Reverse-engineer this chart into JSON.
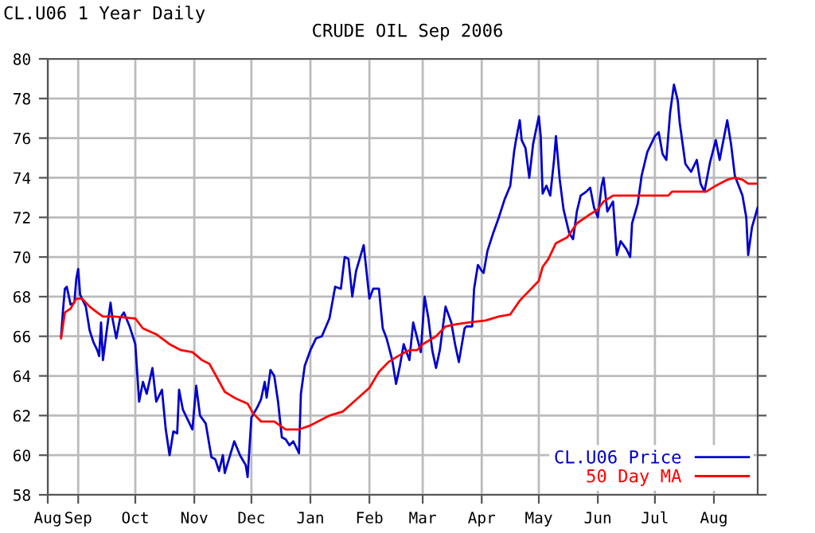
{
  "chart_data": {
    "type": "line",
    "title": "CRUDE OIL Sep 2006",
    "subtitle": "CL.U06 1 Year Daily",
    "xlim": [
      "2005-08-16",
      "2006-08-24"
    ],
    "xticks": [
      {
        "value": "2005-08-16",
        "label": "Aug"
      },
      {
        "value": "2005-09-01",
        "label": "Sep"
      },
      {
        "value": "2005-10-01",
        "label": "Oct"
      },
      {
        "value": "2005-11-01",
        "label": "Nov"
      },
      {
        "value": "2005-12-01",
        "label": "Dec"
      },
      {
        "value": "2006-01-01",
        "label": "Jan"
      },
      {
        "value": "2006-02-01",
        "label": "Feb"
      },
      {
        "value": "2006-03-01",
        "label": "Mar"
      },
      {
        "value": "2006-04-01",
        "label": "Apr"
      },
      {
        "value": "2006-05-01",
        "label": "May"
      },
      {
        "value": "2006-06-01",
        "label": "Jun"
      },
      {
        "value": "2006-07-01",
        "label": "Jul"
      },
      {
        "value": "2006-08-01",
        "label": "Aug"
      }
    ],
    "ylim": [
      58,
      80
    ],
    "yticks": [
      58,
      60,
      62,
      64,
      66,
      68,
      70,
      72,
      74,
      76,
      78,
      80
    ],
    "grid": true,
    "legend": "bottom right",
    "marker": "none",
    "line_style": "solid",
    "series": [
      {
        "name": "CL.U06 Price",
        "color": "#0000cc",
        "x": [
          "2005-08-23",
          "2005-08-24",
          "2005-08-25",
          "2005-08-26",
          "2005-08-28",
          "2005-08-30",
          "2005-08-31",
          "2005-09-01",
          "2005-09-02",
          "2005-09-05",
          "2005-09-07",
          "2005-09-09",
          "2005-09-11",
          "2005-09-12",
          "2005-09-13",
          "2005-09-14",
          "2005-09-16",
          "2005-09-18",
          "2005-09-19",
          "2005-09-21",
          "2005-09-23",
          "2005-09-25",
          "2005-09-28",
          "2005-10-01",
          "2005-10-03",
          "2005-10-05",
          "2005-10-07",
          "2005-10-10",
          "2005-10-12",
          "2005-10-15",
          "2005-10-17",
          "2005-10-19",
          "2005-10-21",
          "2005-10-23",
          "2005-10-24",
          "2005-10-26",
          "2005-10-28",
          "2005-10-31",
          "2005-11-02",
          "2005-11-04",
          "2005-11-07",
          "2005-11-10",
          "2005-11-12",
          "2005-11-14",
          "2005-11-16",
          "2005-11-17",
          "2005-11-22",
          "2005-11-25",
          "2005-11-28",
          "2005-11-29",
          "2005-12-01",
          "2005-12-04",
          "2005-12-06",
          "2005-12-08",
          "2005-12-09",
          "2005-12-11",
          "2005-12-13",
          "2005-12-15",
          "2005-12-17",
          "2005-12-19",
          "2005-12-21",
          "2005-12-23",
          "2005-12-26",
          "2005-12-27",
          "2005-12-29",
          "2006-01-01",
          "2006-01-04",
          "2006-01-07",
          "2006-01-11",
          "2006-01-14",
          "2006-01-17",
          "2006-01-19",
          "2006-01-21",
          "2006-01-23",
          "2006-01-25",
          "2006-01-29",
          "2006-02-01",
          "2006-02-03",
          "2006-02-06",
          "2006-02-08",
          "2006-02-10",
          "2006-02-13",
          "2006-02-15",
          "2006-02-17",
          "2006-02-19",
          "2006-02-22",
          "2006-02-24",
          "2006-02-28",
          "2006-03-02",
          "2006-03-04",
          "2006-03-06",
          "2006-03-08",
          "2006-03-10",
          "2006-03-13",
          "2006-03-16",
          "2006-03-18",
          "2006-03-20",
          "2006-03-23",
          "2006-03-24",
          "2006-03-27",
          "2006-03-28",
          "2006-03-30",
          "2006-04-01",
          "2006-04-02",
          "2006-04-04",
          "2006-04-07",
          "2006-04-10",
          "2006-04-13",
          "2006-04-16",
          "2006-04-18",
          "2006-04-19",
          "2006-04-21",
          "2006-04-22",
          "2006-04-24",
          "2006-04-26",
          "2006-04-28",
          "2006-05-01",
          "2006-05-02",
          "2006-05-03",
          "2006-05-05",
          "2006-05-07",
          "2006-05-09",
          "2006-05-10",
          "2006-05-12",
          "2006-05-14",
          "2006-05-17",
          "2006-05-19",
          "2006-05-21",
          "2006-05-23",
          "2006-05-26",
          "2006-05-28",
          "2006-05-30",
          "2006-06-01",
          "2006-06-03",
          "2006-06-04",
          "2006-06-06",
          "2006-06-09",
          "2006-06-11",
          "2006-06-13",
          "2006-06-16",
          "2006-06-18",
          "2006-06-19",
          "2006-06-22",
          "2006-06-24",
          "2006-06-27",
          "2006-07-01",
          "2006-07-03",
          "2006-07-05",
          "2006-07-07",
          "2006-07-09",
          "2006-07-11",
          "2006-07-13",
          "2006-07-14",
          "2006-07-17",
          "2006-07-20",
          "2006-07-23",
          "2006-07-25",
          "2006-07-27",
          "2006-07-30",
          "2006-08-02",
          "2006-08-04",
          "2006-08-08",
          "2006-08-10",
          "2006-08-12",
          "2006-08-16",
          "2006-08-18",
          "2006-08-19",
          "2006-08-21",
          "2006-08-24"
        ],
        "values": [
          66.0,
          67.3,
          68.4,
          68.5,
          67.6,
          67.7,
          68.9,
          69.4,
          68.1,
          67.5,
          66.3,
          65.7,
          65.3,
          65.0,
          66.7,
          64.8,
          66.3,
          67.7,
          66.9,
          65.9,
          66.9,
          67.2,
          66.5,
          65.6,
          62.7,
          63.7,
          63.1,
          64.4,
          62.7,
          63.3,
          61.3,
          60.0,
          61.2,
          61.1,
          63.3,
          62.3,
          61.9,
          61.3,
          63.5,
          62.0,
          61.6,
          59.9,
          59.8,
          59.2,
          60.0,
          59.1,
          60.7,
          60.0,
          59.5,
          58.9,
          61.9,
          62.4,
          62.8,
          63.7,
          62.9,
          64.3,
          64.0,
          62.7,
          60.9,
          60.8,
          60.5,
          60.7,
          60.1,
          63.1,
          64.5,
          65.3,
          65.9,
          66.0,
          66.9,
          68.5,
          68.4,
          70.0,
          69.9,
          68.0,
          69.3,
          70.6,
          67.9,
          68.4,
          68.4,
          66.4,
          65.9,
          64.8,
          63.6,
          64.5,
          65.6,
          64.8,
          66.7,
          65.2,
          68.0,
          66.9,
          65.3,
          64.4,
          65.3,
          67.5,
          66.7,
          65.6,
          64.7,
          66.4,
          66.5,
          66.5,
          68.4,
          69.6,
          69.3,
          69.2,
          70.3,
          71.2,
          72.0,
          72.9,
          73.6,
          75.3,
          75.9,
          76.9,
          75.9,
          75.5,
          74.0,
          75.7,
          77.1,
          76.1,
          73.2,
          73.6,
          73.1,
          74.9,
          76.1,
          73.9,
          72.4,
          71.2,
          70.9,
          72.3,
          73.1,
          73.3,
          73.5,
          72.5,
          72.0,
          73.6,
          74.0,
          72.3,
          72.8,
          70.1,
          70.8,
          70.4,
          70.0,
          71.7,
          72.7,
          74.1,
          75.3,
          76.1,
          76.3,
          75.2,
          74.9,
          77.3,
          78.7,
          77.9,
          76.8,
          74.7,
          74.3,
          74.9,
          73.7,
          73.3,
          74.8,
          75.9,
          74.9,
          76.9,
          75.7,
          74.1,
          73.1,
          72.0,
          70.1,
          71.5,
          72.5
        ]
      },
      {
        "name": "50 Day MA",
        "color": "#ff0000",
        "x": [
          "2005-08-23",
          "2005-08-25",
          "2005-08-28",
          "2005-08-31",
          "2005-09-03",
          "2005-09-07",
          "2005-09-11",
          "2005-09-14",
          "2005-09-20",
          "2005-10-01",
          "2005-10-05",
          "2005-10-12",
          "2005-10-19",
          "2005-10-25",
          "2005-10-31",
          "2005-11-05",
          "2005-11-09",
          "2005-11-13",
          "2005-11-17",
          "2005-11-22",
          "2005-11-29",
          "2005-12-02",
          "2005-12-06",
          "2005-12-13",
          "2005-12-16",
          "2005-12-19",
          "2005-12-26",
          "2006-01-01",
          "2006-01-05",
          "2006-01-11",
          "2006-01-18",
          "2006-01-25",
          "2006-02-01",
          "2006-02-06",
          "2006-02-11",
          "2006-02-16",
          "2006-02-22",
          "2006-02-26",
          "2006-03-01",
          "2006-03-08",
          "2006-03-13",
          "2006-03-18",
          "2006-03-25",
          "2006-04-03",
          "2006-04-10",
          "2006-04-16",
          "2006-04-21",
          "2006-05-01",
          "2006-05-03",
          "2006-05-06",
          "2006-05-10",
          "2006-05-16",
          "2006-05-21",
          "2006-05-27",
          "2006-06-01",
          "2006-06-04",
          "2006-06-09",
          "2006-06-15",
          "2006-06-24",
          "2006-07-01",
          "2006-07-08",
          "2006-07-10",
          "2006-07-20",
          "2006-07-28",
          "2006-08-02",
          "2006-08-08",
          "2006-08-12",
          "2006-08-16",
          "2006-08-19",
          "2006-08-24"
        ],
        "values": [
          65.9,
          67.2,
          67.4,
          67.9,
          67.9,
          67.5,
          67.2,
          67.0,
          67.0,
          66.9,
          66.4,
          66.1,
          65.6,
          65.3,
          65.2,
          64.8,
          64.6,
          63.9,
          63.2,
          62.9,
          62.6,
          62.1,
          61.7,
          61.7,
          61.5,
          61.3,
          61.3,
          61.5,
          61.7,
          62.0,
          62.2,
          62.8,
          63.4,
          64.2,
          64.7,
          65.0,
          65.3,
          65.3,
          65.6,
          66.0,
          66.5,
          66.6,
          66.7,
          66.8,
          67.0,
          67.1,
          67.8,
          68.8,
          69.5,
          69.9,
          70.7,
          71.0,
          71.7,
          72.1,
          72.4,
          72.8,
          73.1,
          73.1,
          73.1,
          73.1,
          73.1,
          73.3,
          73.3,
          73.3,
          73.6,
          73.9,
          74.0,
          73.9,
          73.7,
          73.7
        ]
      }
    ]
  }
}
